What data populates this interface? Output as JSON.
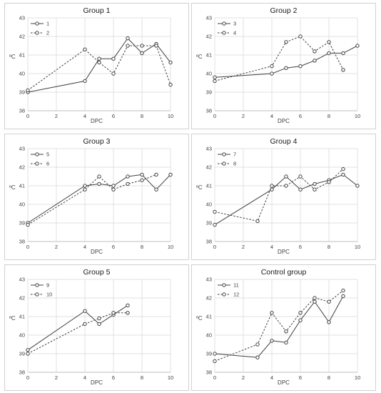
{
  "chart_data": [
    {
      "type": "line",
      "title": "Group 1",
      "xlabel": "DPC",
      "ylabel": "ºC",
      "xlim": [
        0,
        10
      ],
      "ylim": [
        38,
        43
      ],
      "xticks": [
        "0",
        "2",
        "4",
        "6",
        "8",
        "10"
      ],
      "yticks": [
        "38",
        "39",
        "40",
        "41",
        "42",
        "43"
      ],
      "grid": true,
      "legend": "top-left",
      "series": [
        {
          "name": "1",
          "style": "solid",
          "x": [
            0,
            4,
            5,
            6,
            7,
            8,
            9,
            10
          ],
          "values": [
            39.0,
            39.6,
            40.8,
            40.8,
            41.9,
            41.1,
            41.6,
            40.6
          ]
        },
        {
          "name": "2",
          "style": "dashed",
          "x": [
            0,
            4,
            5,
            6,
            7,
            8,
            9,
            10
          ],
          "values": [
            39.1,
            41.3,
            40.6,
            40.0,
            41.5,
            41.5,
            41.5,
            39.4
          ]
        }
      ]
    },
    {
      "type": "line",
      "title": "Group 2",
      "xlabel": "DPC",
      "ylabel": "ºC",
      "xlim": [
        0,
        10
      ],
      "ylim": [
        38,
        43
      ],
      "xticks": [
        "0",
        "2",
        "4",
        "6",
        "8",
        "10"
      ],
      "yticks": [
        "38",
        "39",
        "40",
        "41",
        "42",
        "43"
      ],
      "grid": true,
      "legend": "top-left",
      "series": [
        {
          "name": "3",
          "style": "solid",
          "x": [
            0,
            4,
            5,
            6,
            7,
            8,
            9,
            10
          ],
          "values": [
            39.8,
            40.0,
            40.3,
            40.4,
            40.7,
            41.1,
            41.1,
            41.5
          ]
        },
        {
          "name": "4",
          "style": "dashed",
          "x": [
            0,
            4,
            5,
            6,
            7,
            8,
            9
          ],
          "values": [
            39.6,
            40.4,
            41.7,
            42.0,
            41.2,
            41.7,
            40.2
          ]
        }
      ]
    },
    {
      "type": "line",
      "title": "Group 3",
      "xlabel": "DPC",
      "ylabel": "ºC",
      "xlim": [
        0,
        10
      ],
      "ylim": [
        38,
        43
      ],
      "xticks": [
        "0",
        "2",
        "4",
        "6",
        "8",
        "10"
      ],
      "yticks": [
        "38",
        "39",
        "40",
        "41",
        "42",
        "43"
      ],
      "grid": true,
      "legend": "top-left",
      "series": [
        {
          "name": "5",
          "style": "solid",
          "x": [
            0,
            4,
            5,
            6,
            7,
            8,
            9,
            10
          ],
          "values": [
            39.0,
            41.0,
            41.1,
            41.0,
            41.5,
            41.6,
            40.8,
            41.6
          ]
        },
        {
          "name": "6",
          "style": "dashed",
          "x": [
            0,
            4,
            5,
            6,
            7,
            8,
            9
          ],
          "values": [
            38.9,
            40.8,
            41.5,
            40.8,
            41.1,
            41.3,
            41.6
          ]
        }
      ]
    },
    {
      "type": "line",
      "title": "Group 4",
      "xlabel": "DPC",
      "ylabel": "ºC",
      "xlim": [
        0,
        10
      ],
      "ylim": [
        38,
        43
      ],
      "xticks": [
        "0",
        "2",
        "4",
        "6",
        "8",
        "10"
      ],
      "yticks": [
        "38",
        "39",
        "40",
        "41",
        "42",
        "43"
      ],
      "grid": true,
      "legend": "top-left",
      "series": [
        {
          "name": "7",
          "style": "solid",
          "x": [
            0,
            4,
            5,
            6,
            7,
            8,
            9,
            10
          ],
          "values": [
            38.9,
            40.8,
            41.5,
            40.8,
            41.1,
            41.3,
            41.6,
            41.0
          ]
        },
        {
          "name": "8",
          "style": "dashed",
          "x": [
            0,
            3,
            4,
            5,
            6,
            7,
            8,
            9
          ],
          "values": [
            39.6,
            39.1,
            41.0,
            41.0,
            41.5,
            40.8,
            41.2,
            41.9
          ]
        }
      ]
    },
    {
      "type": "line",
      "title": "Group 5",
      "xlabel": "DPC",
      "ylabel": "ºC",
      "xlim": [
        0,
        10
      ],
      "ylim": [
        38,
        43
      ],
      "xticks": [
        "0",
        "2",
        "4",
        "6",
        "8",
        "10"
      ],
      "yticks": [
        "38",
        "39",
        "40",
        "41",
        "42",
        "43"
      ],
      "grid": true,
      "legend": "top-left",
      "series": [
        {
          "name": "9",
          "style": "solid",
          "x": [
            0,
            4,
            5,
            6,
            7
          ],
          "values": [
            39.2,
            41.3,
            40.6,
            41.1,
            41.6
          ]
        },
        {
          "name": "10",
          "style": "dashed",
          "x": [
            0,
            4,
            5,
            6,
            7
          ],
          "values": [
            39.0,
            40.6,
            40.9,
            41.2,
            41.2
          ]
        }
      ]
    },
    {
      "type": "line",
      "title": "Control group",
      "xlabel": "DPC",
      "ylabel": "ºC",
      "xlim": [
        0,
        10
      ],
      "ylim": [
        38,
        43
      ],
      "xticks": [
        "0",
        "2",
        "4",
        "6",
        "8",
        "10"
      ],
      "yticks": [
        "38",
        "39",
        "40",
        "41",
        "42",
        "43"
      ],
      "grid": true,
      "legend": "top-left",
      "series": [
        {
          "name": "11",
          "style": "solid",
          "x": [
            0,
            3,
            4,
            5,
            6,
            7,
            8,
            9
          ],
          "values": [
            39.0,
            38.8,
            39.7,
            39.6,
            40.8,
            41.8,
            40.7,
            42.1
          ]
        },
        {
          "name": "12",
          "style": "dashed",
          "x": [
            0,
            3,
            4,
            5,
            6,
            7,
            8,
            9
          ],
          "values": [
            38.6,
            39.5,
            41.2,
            40.2,
            41.2,
            42.0,
            41.8,
            42.4
          ]
        }
      ]
    }
  ]
}
